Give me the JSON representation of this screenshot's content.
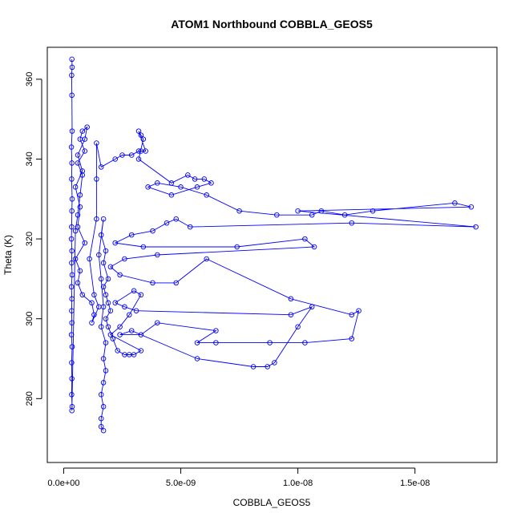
{
  "chart_data": {
    "type": "line",
    "title": "ATOM1 Northbound COBBLA_GEOS5",
    "xlabel": "COBBLA_GEOS5",
    "ylabel": "Theta (K)",
    "xlim": [
      -7e-10,
      1.85e-08
    ],
    "ylim": [
      264,
      368
    ],
    "xticks": [
      0,
      5e-09,
      1e-08,
      1.5e-08
    ],
    "xtick_labels": [
      "0.0e+00",
      "5.0e-09",
      "1.0e-08",
      "1.5e-08"
    ],
    "yticks": [
      280,
      300,
      320,
      340,
      360
    ],
    "ytick_labels": [
      "280",
      "300",
      "320",
      "340",
      "360"
    ],
    "grid": false,
    "legend": "none",
    "series": [
      {
        "color": "#0000ff",
        "marker": "open-circle",
        "points": [
          [
            3.5e-10,
            365
          ],
          [
            3.6e-10,
            363
          ],
          [
            3.4e-10,
            361
          ],
          [
            3.5e-10,
            356
          ],
          [
            3.6e-10,
            347
          ],
          [
            3.3e-10,
            343
          ],
          [
            3.5e-10,
            339
          ],
          [
            3.4e-10,
            335
          ],
          [
            3.6e-10,
            330
          ],
          [
            3.5e-10,
            327
          ],
          [
            3.4e-10,
            323
          ],
          [
            3.3e-10,
            320
          ],
          [
            3.5e-10,
            317
          ],
          [
            3.4e-10,
            314
          ],
          [
            3.6e-10,
            311
          ],
          [
            3.3e-10,
            308
          ],
          [
            3.5e-10,
            305
          ],
          [
            3.4e-10,
            302
          ],
          [
            3.5e-10,
            299
          ],
          [
            3.3e-10,
            296
          ],
          [
            3.6e-10,
            293
          ],
          [
            3.4e-10,
            289
          ],
          [
            3.5e-10,
            285
          ],
          [
            3.4e-10,
            281
          ],
          [
            3.6e-10,
            278
          ],
          [
            3.5e-10,
            277
          ],
          [
            5e-10,
            322
          ],
          [
            6e-10,
            326
          ],
          [
            7e-10,
            331
          ],
          [
            8e-10,
            336
          ],
          [
            6e-10,
            339
          ],
          [
            9e-10,
            342
          ],
          [
            7e-10,
            345
          ],
          [
            8e-10,
            347
          ],
          [
            1e-09,
            348
          ],
          [
            9e-10,
            345
          ],
          [
            6e-10,
            341
          ],
          [
            8e-10,
            337
          ],
          [
            5e-10,
            333
          ],
          [
            7e-10,
            328
          ],
          [
            6e-10,
            323
          ],
          [
            9e-10,
            319
          ],
          [
            5e-10,
            315
          ],
          [
            7e-10,
            312
          ],
          [
            6e-10,
            309
          ],
          [
            8e-10,
            306
          ],
          [
            1.2e-09,
            304
          ],
          [
            1.3e-09,
            301
          ],
          [
            1.2e-09,
            299
          ],
          [
            1.5e-09,
            303
          ],
          [
            1.3e-09,
            306
          ],
          [
            1.1e-09,
            315
          ],
          [
            1.4e-09,
            325
          ],
          [
            1.4e-09,
            335
          ],
          [
            1.4e-09,
            344
          ],
          [
            1.6e-09,
            338
          ],
          [
            2.2e-09,
            340
          ],
          [
            2.5e-09,
            341
          ],
          [
            2.9e-09,
            341
          ],
          [
            3.2e-09,
            342
          ],
          [
            3.3e-09,
            342
          ],
          [
            3.5e-09,
            342
          ],
          [
            3.2e-09,
            347
          ],
          [
            3.3e-09,
            346
          ],
          [
            3.4e-09,
            345
          ],
          [
            3.2e-09,
            340
          ],
          [
            4.6e-09,
            334
          ],
          [
            5.3e-09,
            336
          ],
          [
            5.6e-09,
            335
          ],
          [
            6e-09,
            335
          ],
          [
            6.3e-09,
            334
          ],
          [
            5.7e-09,
            333
          ],
          [
            4.6e-09,
            331
          ],
          [
            3.6e-09,
            333
          ],
          [
            4e-09,
            334
          ],
          [
            5e-09,
            333
          ],
          [
            6.1e-09,
            331
          ],
          [
            7.5e-09,
            327
          ],
          [
            9.1e-09,
            326
          ],
          [
            1.06e-08,
            326
          ],
          [
            1.1e-08,
            327
          ],
          [
            1.2e-08,
            326
          ],
          [
            1.32e-08,
            327
          ],
          [
            1.67e-08,
            329
          ],
          [
            1.74e-08,
            328
          ],
          [
            1e-08,
            327
          ],
          [
            1.76e-08,
            323
          ],
          [
            1.23e-08,
            324
          ],
          [
            5.4e-09,
            323
          ],
          [
            4.8e-09,
            325
          ],
          [
            4.4e-09,
            324
          ],
          [
            3.8e-09,
            322
          ],
          [
            2.9e-09,
            321
          ],
          [
            2.2e-09,
            319
          ],
          [
            3.4e-09,
            318
          ],
          [
            7.4e-09,
            318
          ],
          [
            1.03e-08,
            320
          ],
          [
            1.07e-08,
            318
          ],
          [
            4e-09,
            316
          ],
          [
            2.6e-09,
            315
          ],
          [
            2e-09,
            313
          ],
          [
            2.4e-09,
            311
          ],
          [
            3.8e-09,
            309
          ],
          [
            4.8e-09,
            309
          ],
          [
            6.1e-09,
            315
          ],
          [
            9.7e-09,
            305
          ],
          [
            1.23e-08,
            301
          ],
          [
            1.26e-08,
            302
          ],
          [
            1.23e-08,
            295
          ],
          [
            1.03e-08,
            294
          ],
          [
            8.8e-09,
            294
          ],
          [
            6.5e-09,
            294
          ],
          [
            5.7e-09,
            294
          ],
          [
            6.5e-09,
            297
          ],
          [
            4e-09,
            299
          ],
          [
            3.3e-09,
            296
          ],
          [
            2.4e-09,
            296
          ],
          [
            2.9e-09,
            297
          ],
          [
            5.7e-09,
            290
          ],
          [
            8.1e-09,
            288
          ],
          [
            8.7e-09,
            288
          ],
          [
            9e-09,
            289
          ],
          [
            1e-08,
            298
          ],
          [
            1.06e-08,
            303
          ],
          [
            9.7e-09,
            301
          ],
          [
            3.1e-09,
            302
          ],
          [
            2.6e-09,
            303
          ],
          [
            2.2e-09,
            304
          ],
          [
            3e-09,
            307
          ],
          [
            3.3e-09,
            306
          ],
          [
            2.8e-09,
            301
          ],
          [
            2.4e-09,
            298
          ],
          [
            2e-09,
            296
          ],
          [
            3.3e-09,
            292
          ],
          [
            3e-09,
            291
          ],
          [
            2.8e-09,
            291
          ],
          [
            2.6e-09,
            291
          ],
          [
            2.3e-09,
            292
          ],
          [
            2.1e-09,
            295
          ],
          [
            1.9e-09,
            298
          ],
          [
            1.8e-09,
            300
          ],
          [
            2e-09,
            302
          ],
          [
            1.9e-09,
            304
          ],
          [
            1.8e-09,
            306
          ],
          [
            1.7e-09,
            308
          ],
          [
            1.9e-09,
            310
          ],
          [
            1.7e-09,
            314
          ],
          [
            1.8e-09,
            317
          ],
          [
            1.6e-09,
            321
          ],
          [
            1.7e-09,
            325
          ],
          [
            1.5e-09,
            316
          ],
          [
            1.6e-09,
            310
          ],
          [
            1.7e-09,
            303
          ],
          [
            1.6e-09,
            298
          ],
          [
            1.8e-09,
            294
          ],
          [
            1.7e-09,
            290
          ],
          [
            1.8e-09,
            287
          ],
          [
            1.7e-09,
            284
          ],
          [
            1.6e-09,
            281
          ],
          [
            1.7e-09,
            278
          ],
          [
            1.6e-09,
            275
          ],
          [
            1.6e-09,
            273
          ],
          [
            1.7e-09,
            272
          ]
        ]
      }
    ]
  }
}
